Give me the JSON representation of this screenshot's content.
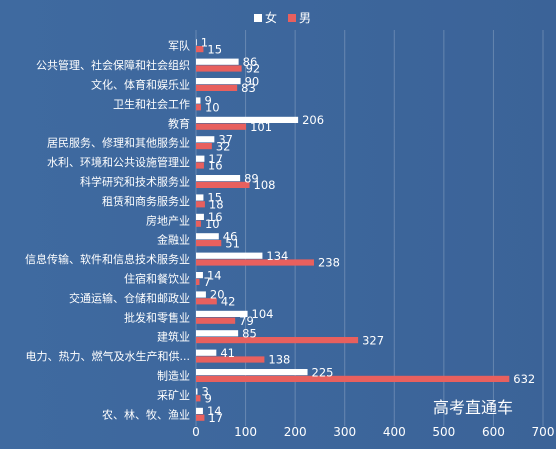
{
  "watermark": "高考直通车",
  "chart_data": {
    "type": "bar",
    "orientation": "horizontal",
    "categories": [
      "军队",
      "公共管理、社会保障和社会组织",
      "文化、体育和娱乐业",
      "卫生和社会工作",
      "教育",
      "居民服务、修理和其他服务业",
      "水利、环境和公共设施管理业",
      "科学研究和技术服务业",
      "租赁和商务服务业",
      "房地产业",
      "金融业",
      "信息传输、软件和信息技术服务业",
      "住宿和餐饮业",
      "交通运输、仓储和邮政业",
      "批发和零售业",
      "建筑业",
      "电力、热力、燃气及水生产和供...",
      "制造业",
      "采矿业",
      "农、林、牧、渔业"
    ],
    "series": [
      {
        "name": "女",
        "color": "#ffffff",
        "values": [
          1,
          86,
          90,
          9,
          206,
          37,
          17,
          89,
          15,
          16,
          46,
          134,
          14,
          20,
          104,
          85,
          41,
          225,
          3,
          14
        ]
      },
      {
        "name": "男",
        "color": "#e8605e",
        "values": [
          15,
          92,
          83,
          10,
          101,
          32,
          16,
          108,
          18,
          10,
          51,
          238,
          7,
          42,
          79,
          327,
          138,
          632,
          9,
          17
        ]
      }
    ],
    "xlim": [
      0,
      700
    ],
    "xticks": [
      0,
      100,
      200,
      300,
      400,
      500,
      600,
      700
    ],
    "grid": true,
    "legend_position": "top-center"
  }
}
